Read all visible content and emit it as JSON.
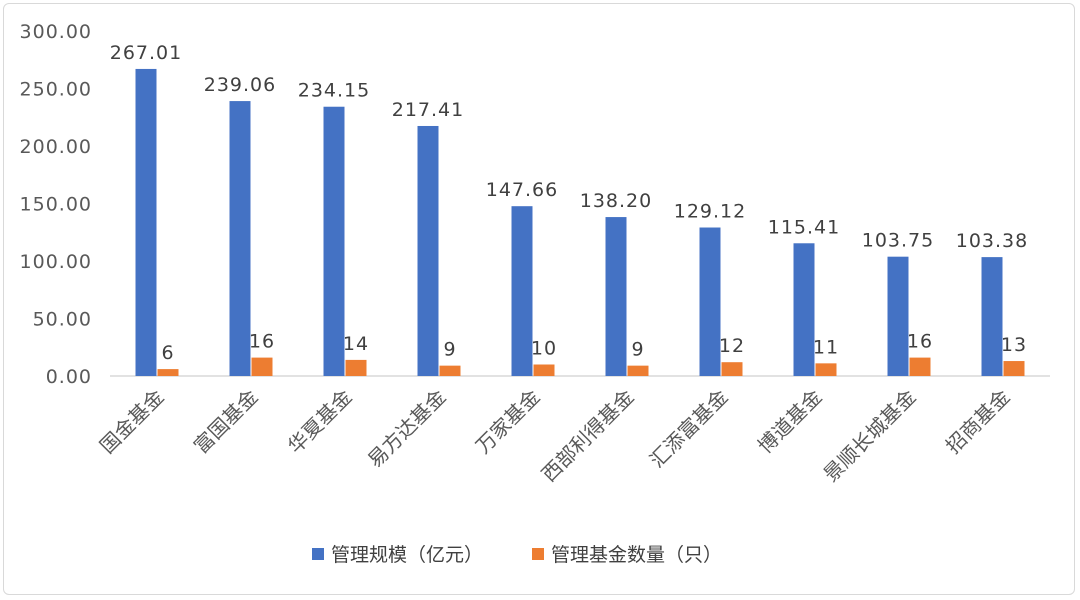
{
  "chart_data": {
    "type": "bar",
    "categories": [
      "国金基金",
      "富国基金",
      "华夏基金",
      "易方达基金",
      "万家基金",
      "西部利得基金",
      "汇添富基金",
      "博道基金",
      "景顺长城基金",
      "招商基金"
    ],
    "series": [
      {
        "name": "管理规模（亿元）",
        "color": "#4472c4",
        "values": [
          267.01,
          239.06,
          234.15,
          217.41,
          147.66,
          138.2,
          129.12,
          115.41,
          103.75,
          103.38
        ],
        "labels": [
          "267.01",
          "239.06",
          "234.15",
          "217.41",
          "147.66",
          "138.20",
          "129.12",
          "115.41",
          "103.75",
          "103.38"
        ]
      },
      {
        "name": "管理基金数量（只）",
        "color": "#ed7d31",
        "values": [
          6,
          16,
          14,
          9,
          10,
          9,
          12,
          11,
          16,
          13
        ],
        "labels": [
          "6",
          "16",
          "14",
          "9",
          "10",
          "9",
          "12",
          "11",
          "16",
          "13"
        ]
      }
    ],
    "yticks": [
      "0.00",
      "50.00",
      "100.00",
      "150.00",
      "200.00",
      "250.00",
      "300.00"
    ],
    "ylim": [
      0,
      300
    ],
    "legend_position": "bottom",
    "grid": false
  }
}
